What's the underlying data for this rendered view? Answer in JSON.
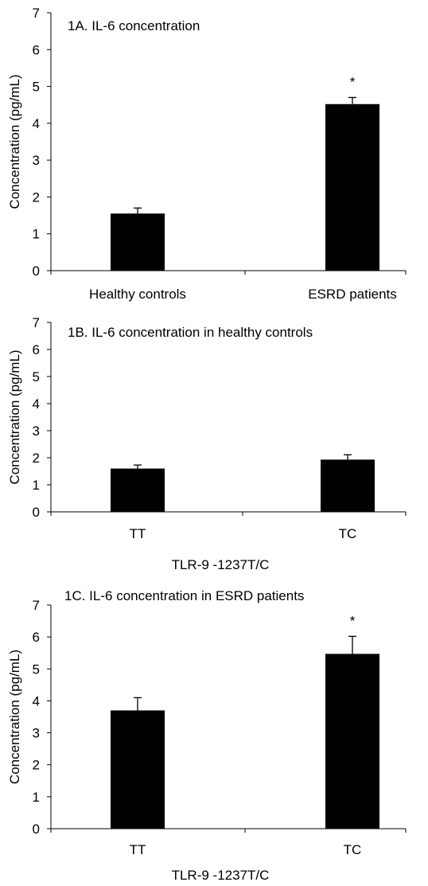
{
  "chart_data": [
    {
      "type": "bar",
      "title": "1A. IL-6 concentration",
      "ylabel": "Concentration (pg/mL)",
      "xlabel": "",
      "categories": [
        "Healthy controls",
        "ESRD patients"
      ],
      "values": [
        1.55,
        4.52
      ],
      "errors": [
        0.15,
        0.18
      ],
      "significance": [
        "",
        "*"
      ],
      "ylim": [
        0,
        7
      ],
      "yticks": [
        "0",
        "1",
        "2",
        "3",
        "4",
        "5",
        "6",
        "7"
      ],
      "grid": false,
      "colors": {
        "bar": "#000000"
      }
    },
    {
      "type": "bar",
      "title": "1B. IL-6 concentration  in healthy controls",
      "ylabel": "Concentration (pg/mL)",
      "xlabel": "TLR-9 -1237T/C",
      "categories": [
        "TT",
        "TC"
      ],
      "values": [
        1.6,
        1.93
      ],
      "errors": [
        0.13,
        0.18
      ],
      "significance": [
        "",
        ""
      ],
      "ylim": [
        0,
        7
      ],
      "yticks": [
        "0",
        "1",
        "2",
        "3",
        "4",
        "5",
        "6",
        "7"
      ],
      "grid": false,
      "colors": {
        "bar": "#000000"
      }
    },
    {
      "type": "bar",
      "title": "1C. IL-6 concentration in ESRD patients",
      "ylabel": "Concentration (pg/mL)",
      "xlabel": "TLR-9 -1237T/C",
      "categories": [
        "TT",
        "TC"
      ],
      "values": [
        3.7,
        5.47
      ],
      "errors": [
        0.4,
        0.55
      ],
      "significance": [
        "",
        "*"
      ],
      "ylim": [
        0,
        7
      ],
      "yticks": [
        "0",
        "1",
        "2",
        "3",
        "4",
        "5",
        "6",
        "7"
      ],
      "grid": false,
      "colors": {
        "bar": "#000000"
      }
    }
  ]
}
